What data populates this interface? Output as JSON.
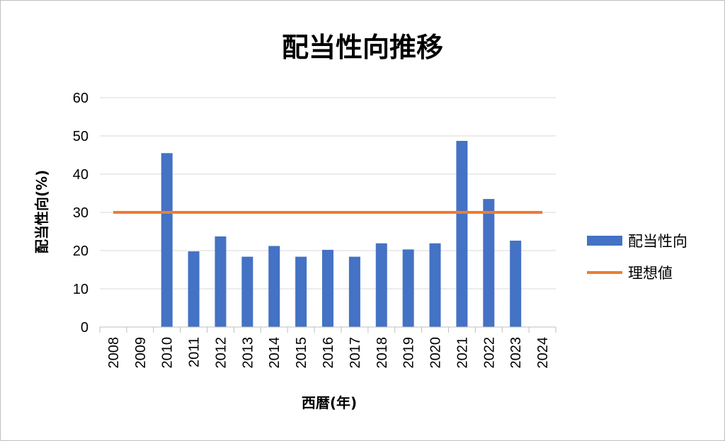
{
  "chart_data": {
    "type": "bar",
    "title": "配当性向推移",
    "xlabel": "西暦(年)",
    "ylabel": "配当性向(%)",
    "ylim": [
      0,
      60
    ],
    "yticks": [
      0,
      10,
      20,
      30,
      40,
      50,
      60
    ],
    "categories": [
      "2008",
      "2009",
      "2010",
      "2011",
      "2012",
      "2013",
      "2014",
      "2015",
      "2016",
      "2017",
      "2018",
      "2019",
      "2020",
      "2021",
      "2022",
      "2023",
      "2024"
    ],
    "series": [
      {
        "name": "配当性向",
        "kind": "bar",
        "color": "#4472C4",
        "values": [
          null,
          null,
          45.5,
          19.8,
          23.7,
          18.4,
          21.2,
          18.4,
          20.2,
          18.4,
          21.9,
          20.3,
          21.9,
          48.7,
          33.5,
          22.6,
          null
        ]
      },
      {
        "name": "理想値",
        "kind": "line",
        "color": "#ED7D31",
        "value": 30
      }
    ],
    "grid": true,
    "legend_position": "right"
  }
}
